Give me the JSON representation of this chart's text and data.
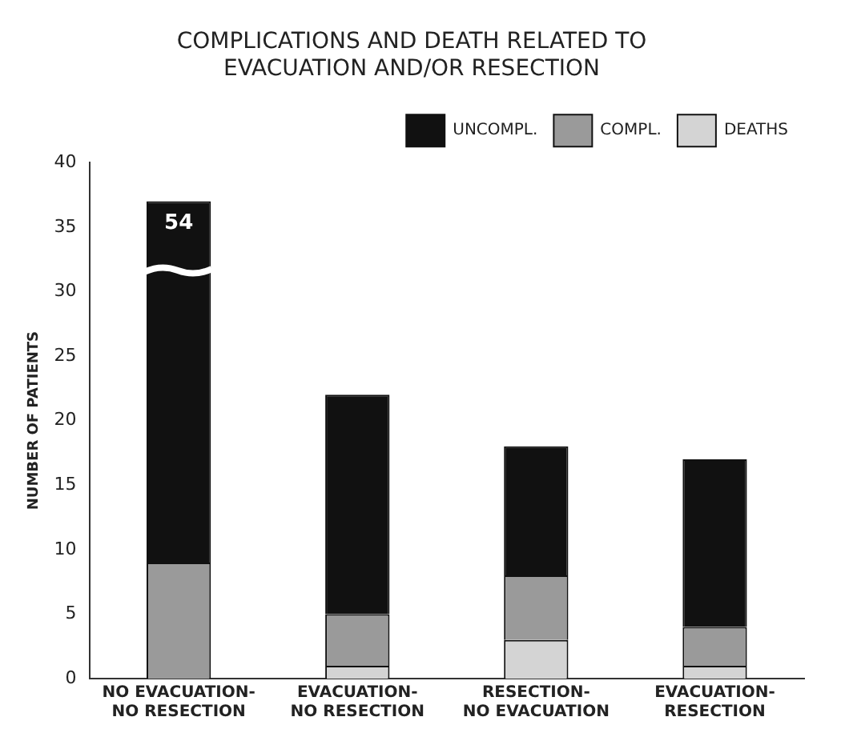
{
  "chart_data": {
    "type": "bar",
    "title": "COMPLICATIONS AND DEATH RELATED TO EVACUATION AND/OR RESECTION",
    "ylabel": "NUMBER OF PATIENTS",
    "categories": [
      "NO EVACUATION- NO RESECTION",
      "EVACUATION- NO RESECTION",
      "RESECTION- NO EVACUATION",
      "EVACUATION- RESECTION"
    ],
    "stacked": true,
    "series": [
      {
        "name": "DEATHS",
        "color": "#d4d4d4",
        "values": [
          0,
          1,
          3,
          1
        ]
      },
      {
        "name": "COMPL.",
        "color": "#9a9a9a",
        "values": [
          9,
          4,
          5,
          3
        ]
      },
      {
        "name": "UNCOMPL.",
        "color": "#111111",
        "values": [
          28,
          17,
          10,
          13
        ]
      }
    ],
    "ylim": [
      0,
      40
    ],
    "yticks": [
      0,
      5,
      10,
      15,
      20,
      25,
      30,
      35,
      40
    ],
    "grid": false,
    "legend": "top right",
    "annotations": [
      "54"
    ]
  }
}
